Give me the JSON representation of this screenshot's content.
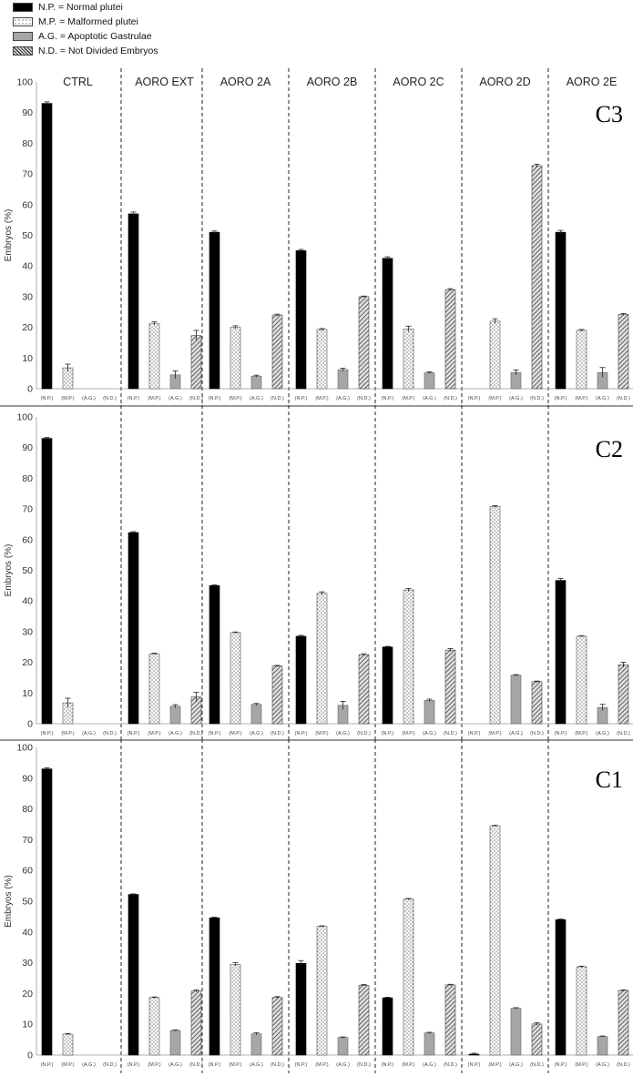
{
  "legend": [
    {
      "label": "N.P. = Normal plutei",
      "key": "np"
    },
    {
      "label": "M.P. = Malformed plutei",
      "key": "mp"
    },
    {
      "label": "A.G. = Apoptotic Gastrulae",
      "key": "ag"
    },
    {
      "label": "N.D. = Not Divided Embryos",
      "key": "nd"
    }
  ],
  "chart_data": [
    {
      "type": "bar",
      "title": "C3",
      "ylabel": "Embryos (%)",
      "ylim": [
        0,
        100
      ],
      "yticks": [
        0,
        10,
        20,
        30,
        40,
        50,
        60,
        70,
        80,
        90,
        100
      ],
      "groups": [
        "CTRL",
        "AORO EXT",
        "AORO 2A",
        "AORO 2B",
        "AORO 2C",
        "AORO 2D",
        "AORO 2E"
      ],
      "bar_labels": [
        "(N.P.)",
        "(M.P.)",
        "(A.G.)",
        "(N.D.)"
      ],
      "series": [
        {
          "key": "np",
          "values": [
            93,
            57,
            51,
            45,
            42.5,
            0,
            51
          ],
          "errors": [
            0.5,
            0.6,
            0.4,
            0.4,
            0.5,
            0,
            0.6
          ]
        },
        {
          "key": "mp",
          "values": [
            6.8,
            21.3,
            20,
            19.3,
            19.5,
            22,
            19
          ],
          "errors": [
            1.2,
            0.5,
            0.5,
            0.3,
            0.9,
            0.8,
            0.3
          ]
        },
        {
          "key": "ag",
          "values": [
            0,
            4.5,
            4.1,
            6.2,
            5.2,
            5.3,
            5.3
          ],
          "errors": [
            0,
            1.3,
            0.3,
            0.5,
            0.3,
            0.8,
            1.6
          ]
        },
        {
          "key": "nd",
          "values": [
            0,
            17.3,
            24,
            30,
            32.3,
            72.7,
            24.2
          ],
          "errors": [
            0,
            1.7,
            0.3,
            0.2,
            0.3,
            0.5,
            0.3
          ]
        }
      ]
    },
    {
      "type": "bar",
      "title": "C2",
      "ylabel": "Embryos (%)",
      "ylim": [
        0,
        100
      ],
      "yticks": [
        0,
        10,
        20,
        30,
        40,
        50,
        60,
        70,
        80,
        90,
        100
      ],
      "groups": [
        "CTRL",
        "AORO EXT",
        "AORO 2A",
        "AORO 2B",
        "AORO 2C",
        "AORO 2D",
        "AORO 2E"
      ],
      "bar_labels": [
        "(N.P.)",
        "(M.P.)",
        "(A.G.)",
        "(N.D.)"
      ],
      "series": [
        {
          "key": "np",
          "values": [
            93,
            62.3,
            45,
            28.5,
            25,
            0,
            46.7
          ],
          "errors": [
            0.3,
            0.3,
            0.3,
            0.3,
            0.2,
            0,
            0.6
          ]
        },
        {
          "key": "mp",
          "values": [
            6.8,
            22.8,
            29.7,
            42.5,
            43.6,
            70.8,
            28.5
          ],
          "errors": [
            1.5,
            0.2,
            0.2,
            0.5,
            0.5,
            0.3,
            0.2
          ]
        },
        {
          "key": "ag",
          "values": [
            0,
            5.7,
            6.3,
            6,
            7.6,
            15.8,
            5.3
          ],
          "errors": [
            0,
            0.5,
            0.3,
            1.3,
            0.4,
            0.2,
            1
          ]
        },
        {
          "key": "nd",
          "values": [
            0,
            8.7,
            18.8,
            22.5,
            24,
            13.7,
            19.2
          ],
          "errors": [
            0,
            1.5,
            0.2,
            0.3,
            0.5,
            0.2,
            0.8
          ]
        }
      ]
    },
    {
      "type": "bar",
      "title": "C1",
      "ylabel": "Embryos (%)",
      "ylim": [
        0,
        100
      ],
      "yticks": [
        0,
        10,
        20,
        30,
        40,
        50,
        60,
        70,
        80,
        90,
        100
      ],
      "groups": [
        "CTRL",
        "AORO EXT",
        "AORO 2A",
        "AORO 2B",
        "AORO 2C",
        "AORO 2D",
        "AORO 2E"
      ],
      "bar_labels": [
        "(N.P.)",
        "(M.P.)",
        "(A.G.)",
        "(N.D.)"
      ],
      "series": [
        {
          "key": "np",
          "values": [
            93,
            52.2,
            44.6,
            29.8,
            18.6,
            0.3,
            44
          ],
          "errors": [
            0.4,
            0.2,
            0.2,
            0.9,
            0.2,
            0.3,
            0.2
          ]
        },
        {
          "key": "mp",
          "values": [
            6.8,
            18.7,
            29.5,
            41.8,
            50.7,
            74.5,
            28.7
          ],
          "errors": [
            0.2,
            0.2,
            0.5,
            0.2,
            0.2,
            0.2,
            0.2
          ]
        },
        {
          "key": "ag",
          "values": [
            0,
            8,
            6.9,
            5.7,
            7.2,
            15.2,
            6
          ],
          "errors": [
            0,
            0.2,
            0.4,
            0.2,
            0.2,
            0.2,
            0.2
          ]
        },
        {
          "key": "nd",
          "values": [
            0,
            20.8,
            18.7,
            22.7,
            22.8,
            10.1,
            21
          ],
          "errors": [
            0,
            0.4,
            0.3,
            0.2,
            0.2,
            0.4,
            0.2
          ]
        }
      ]
    }
  ]
}
